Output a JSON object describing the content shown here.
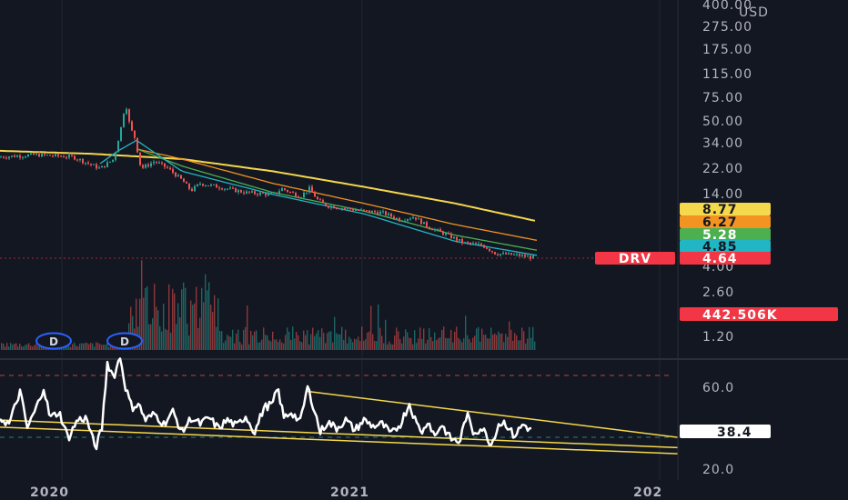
{
  "chart_data": [
    {
      "type": "line",
      "panel": "price",
      "symbol": "DRV",
      "currency": "USD",
      "y_scale": "log",
      "ylim": [
        1.0,
        400.0
      ],
      "yticks": [
        "400.00",
        "275.00",
        "175.00",
        "115.00",
        "75.00",
        "50.00",
        "34.00",
        "22.00",
        "14.00",
        "4.00",
        "2.60",
        "1.20"
      ],
      "x_labels": [
        "2020",
        "2021",
        "202"
      ],
      "series": [
        {
          "label": "8.77",
          "value": 8.77,
          "color": "#f5d84b"
        },
        {
          "label": "6.27",
          "value": 6.27,
          "color": "#f39322"
        },
        {
          "label": "5.28",
          "value": 5.28,
          "color": "#4caf50"
        },
        {
          "label": "4.85",
          "value": 4.85,
          "color": "#22b5c3"
        },
        {
          "label": "4.64",
          "value": 4.64,
          "color": "#f23645"
        }
      ],
      "ma_paths": {
        "yellow": [
          [
            0,
            30
          ],
          [
            100,
            28.5
          ],
          [
            200,
            26
          ],
          [
            300,
            21
          ],
          [
            400,
            16
          ],
          [
            500,
            12
          ],
          [
            590,
            8.8
          ]
        ],
        "orange": [
          [
            150,
            31
          ],
          [
            200,
            26
          ],
          [
            300,
            17
          ],
          [
            400,
            12
          ],
          [
            500,
            8.3
          ],
          [
            590,
            6.3
          ]
        ],
        "green": [
          [
            150,
            31
          ],
          [
            200,
            23
          ],
          [
            300,
            14.5
          ],
          [
            400,
            10.5
          ],
          [
            500,
            6.9
          ],
          [
            590,
            5.3
          ]
        ],
        "cyan": [
          [
            110,
            24
          ],
          [
            130,
            30
          ],
          [
            150,
            36
          ],
          [
            200,
            21
          ],
          [
            300,
            14
          ],
          [
            400,
            10
          ],
          [
            500,
            6.2
          ],
          [
            590,
            4.85
          ]
        ]
      },
      "price_path": [
        [
          0,
          27
        ],
        [
          40,
          28
        ],
        [
          80,
          27
        ],
        [
          110,
          22
        ],
        [
          125,
          26
        ],
        [
          133,
          45
        ],
        [
          138,
          70
        ],
        [
          143,
          45
        ],
        [
          148,
          38
        ],
        [
          155,
          22
        ],
        [
          170,
          25
        ],
        [
          185,
          22
        ],
        [
          200,
          18
        ],
        [
          210,
          15
        ],
        [
          220,
          17
        ],
        [
          240,
          16
        ],
        [
          270,
          14.5
        ],
        [
          300,
          14
        ],
        [
          310,
          15.5
        ],
        [
          330,
          13.5
        ],
        [
          340,
          15.5
        ],
        [
          350,
          12.5
        ],
        [
          360,
          11.5
        ],
        [
          380,
          11
        ],
        [
          400,
          10.5
        ],
        [
          420,
          10.2
        ],
        [
          440,
          9
        ],
        [
          455,
          9.5
        ],
        [
          470,
          8
        ],
        [
          490,
          7
        ],
        [
          510,
          6
        ],
        [
          530,
          5.8
        ],
        [
          545,
          5
        ],
        [
          570,
          4.85
        ],
        [
          588,
          4.64
        ]
      ],
      "last_price": 4.64,
      "volume_last": "442.506K",
      "dividend_markers": [
        "D",
        "D"
      ]
    },
    {
      "type": "line",
      "panel": "oscillator",
      "ylim": [
        15,
        80
      ],
      "yticks": [
        "60.0",
        "20.0"
      ],
      "levels": [
        70,
        30
      ],
      "last_value": 38.4,
      "path": [
        [
          0,
          45
        ],
        [
          10,
          42
        ],
        [
          22,
          58
        ],
        [
          30,
          40
        ],
        [
          40,
          50
        ],
        [
          48,
          60
        ],
        [
          55,
          45
        ],
        [
          65,
          48
        ],
        [
          75,
          35
        ],
        [
          85,
          44
        ],
        [
          95,
          45
        ],
        [
          105,
          30
        ],
        [
          112,
          40
        ],
        [
          118,
          72
        ],
        [
          125,
          65
        ],
        [
          132,
          75
        ],
        [
          138,
          60
        ],
        [
          145,
          50
        ],
        [
          152,
          52
        ],
        [
          160,
          44
        ],
        [
          170,
          47
        ],
        [
          180,
          42
        ],
        [
          190,
          48
        ],
        [
          200,
          38
        ],
        [
          210,
          45
        ],
        [
          220,
          42
        ],
        [
          230,
          45
        ],
        [
          240,
          40
        ],
        [
          250,
          44
        ],
        [
          260,
          41
        ],
        [
          270,
          46
        ],
        [
          280,
          38
        ],
        [
          290,
          50
        ],
        [
          300,
          52
        ],
        [
          305,
          60
        ],
        [
          312,
          45
        ],
        [
          320,
          48
        ],
        [
          330,
          43
        ],
        [
          338,
          60
        ],
        [
          345,
          50
        ],
        [
          352,
          38
        ],
        [
          360,
          43
        ],
        [
          370,
          40
        ],
        [
          380,
          44
        ],
        [
          390,
          39
        ],
        [
          400,
          44
        ],
        [
          410,
          41
        ],
        [
          420,
          42
        ],
        [
          430,
          37
        ],
        [
          440,
          42
        ],
        [
          450,
          52
        ],
        [
          458,
          42
        ],
        [
          465,
          38
        ],
        [
          470,
          44
        ],
        [
          478,
          36
        ],
        [
          485,
          42
        ],
        [
          495,
          35
        ],
        [
          505,
          33
        ],
        [
          513,
          47
        ],
        [
          520,
          38
        ],
        [
          530,
          40
        ],
        [
          540,
          32
        ],
        [
          548,
          42
        ],
        [
          555,
          43
        ],
        [
          565,
          36
        ],
        [
          575,
          42
        ],
        [
          585,
          38.4
        ]
      ],
      "trendlines": [
        [
          [
            338,
            58
          ],
          [
            745,
            35.5
          ]
        ],
        [
          [
            0,
            44
          ],
          [
            745,
            30.5
          ]
        ],
        [
          [
            0,
            40.5
          ],
          [
            745,
            27.5
          ]
        ]
      ]
    }
  ]
}
